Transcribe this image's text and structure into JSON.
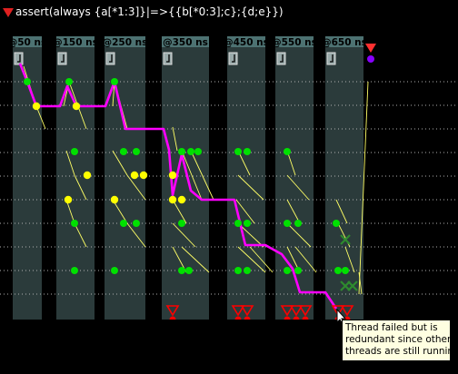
{
  "assertion": {
    "text": "assert(always {a[*1:3]}|=>{{b[*0:3];c};{d;e}})",
    "status_icon": "failed-triangle-icon",
    "color_failed": "#e02020"
  },
  "timeline": {
    "labels": [
      "@50 ns",
      "@150 ns",
      "@250 ns",
      "@350 ns",
      "@450 ns",
      "@550 ns",
      "@650 ns"
    ]
  },
  "colors": {
    "background": "#000000",
    "column": "#2b3b3b",
    "header": "#4d7272",
    "trace": "#ff00ff",
    "active_node": "#00e000",
    "pending_node": "#ffff00",
    "thread_line": "#ffff66",
    "failed": "#ff0000",
    "success": "#8800ff",
    "dropped": "#2e8b2e"
  },
  "tooltip": {
    "lines": [
      "Thread failed but is",
      "redundant since other",
      "threads are still running"
    ]
  }
}
